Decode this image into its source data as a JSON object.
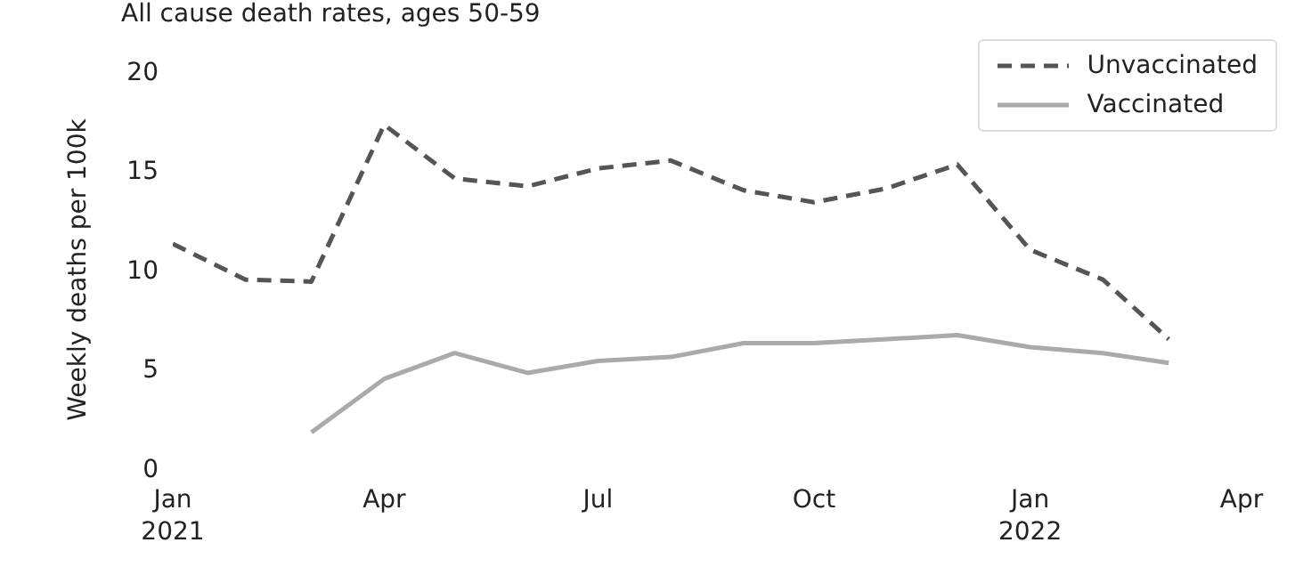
{
  "chart_data": {
    "type": "line",
    "title": "All cause death rates, ages 50-59",
    "ylabel": "Weekly deaths per 100k",
    "x": [
      "2021-01-01",
      "2021-02-01",
      "2021-03-01",
      "2021-04-01",
      "2021-05-01",
      "2021-06-01",
      "2021-07-01",
      "2021-08-01",
      "2021-09-01",
      "2021-10-01",
      "2021-11-01",
      "2021-12-01",
      "2022-01-01",
      "2022-02-01",
      "2022-03-01"
    ],
    "series": [
      {
        "name": "Unvaccinated",
        "color": "#555555",
        "line_style": "dashed",
        "values": [
          11.3,
          9.5,
          9.4,
          17.3,
          14.6,
          14.2,
          15.1,
          15.5,
          14.0,
          13.4,
          14.1,
          15.3,
          11.0,
          9.5,
          6.5
        ]
      },
      {
        "name": "Vaccinated",
        "color": "#aaaaaa",
        "line_style": "solid",
        "values": [
          null,
          null,
          1.8,
          4.5,
          5.8,
          4.8,
          5.4,
          5.6,
          6.3,
          6.3,
          6.5,
          6.7,
          6.1,
          5.8,
          5.3
        ]
      }
    ],
    "xlim": [
      "2021-01-01",
      "2022-04-01"
    ],
    "xticks": [
      {
        "value": "2021-01-01",
        "label": "Jan\n2021"
      },
      {
        "value": "2021-04-01",
        "label": "Apr"
      },
      {
        "value": "2021-07-01",
        "label": "Jul"
      },
      {
        "value": "2021-10-01",
        "label": "Oct"
      },
      {
        "value": "2022-01-01",
        "label": "Jan\n2022"
      },
      {
        "value": "2022-04-01",
        "label": "Apr"
      }
    ],
    "ylim": [
      0,
      20
    ],
    "yticks": [
      0,
      5,
      10,
      15,
      20
    ],
    "legend": "top right",
    "marker": "none"
  }
}
